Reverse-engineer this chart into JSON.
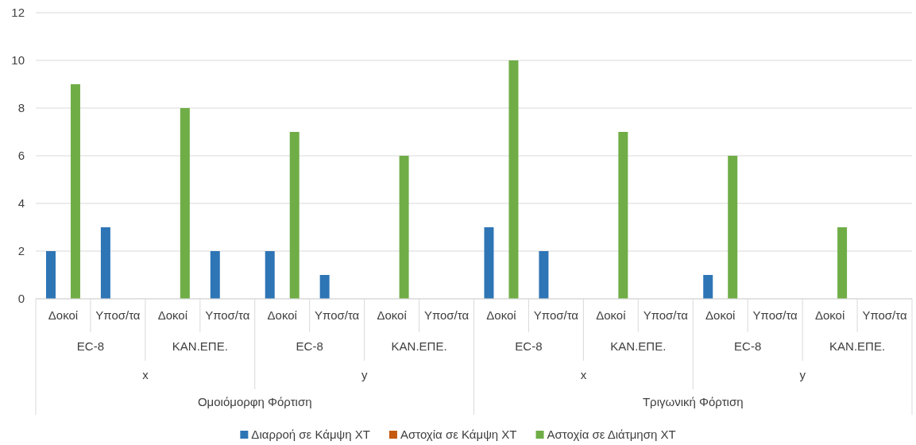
{
  "chart_data": {
    "type": "bar",
    "categories": [
      "Δοκοί",
      "Υποσ/τα",
      "Δοκοί",
      "Υποσ/τα",
      "Δοκοί",
      "Υποσ/τα",
      "Δοκοί",
      "Υποσ/τα",
      "Δοκοί",
      "Υποσ/τα",
      "Δοκοί",
      "Υποσ/τα",
      "Δοκοί",
      "Υποσ/τα",
      "Δοκοί",
      "Υποσ/τα"
    ],
    "series": [
      {
        "name": "Διαρροή σε Κάμψη ΧΤ",
        "color": "#2e75b6",
        "values": [
          2,
          3,
          0,
          2,
          2,
          1,
          0,
          0,
          3,
          2,
          0,
          0,
          1,
          0,
          0,
          0
        ]
      },
      {
        "name": "Αστοχία σε Κάμψη ΧΤ",
        "color": "#c55a11",
        "values": [
          0,
          0,
          0,
          0,
          0,
          0,
          0,
          0,
          0,
          0,
          0,
          0,
          0,
          0,
          0,
          0
        ]
      },
      {
        "name": "Αστοχία σε Διάτμηση ΧΤ",
        "color": "#70ad47",
        "values": [
          9,
          0,
          8,
          0,
          7,
          0,
          6,
          0,
          10,
          0,
          7,
          0,
          6,
          0,
          3,
          0
        ]
      }
    ],
    "annotations": [
      "EC-8",
      "ΚΑΝ.ΕΠΕ.",
      "EC-8",
      "ΚΑΝ.ΕΠΕ.",
      "EC-8",
      "ΚΑΝ.ΕΠΕ.",
      "EC-8",
      "ΚΑΝ.ΕΠΕ.",
      "x",
      "y",
      "x",
      "y",
      "Ομοιόμορφη Φόρτιση",
      "Τριγωνική Φόρτιση"
    ],
    "ylim": [
      0,
      12
    ],
    "yticks": [
      0,
      2,
      4,
      6,
      8,
      10,
      12
    ],
    "grid": "y",
    "legend": "bottom"
  }
}
